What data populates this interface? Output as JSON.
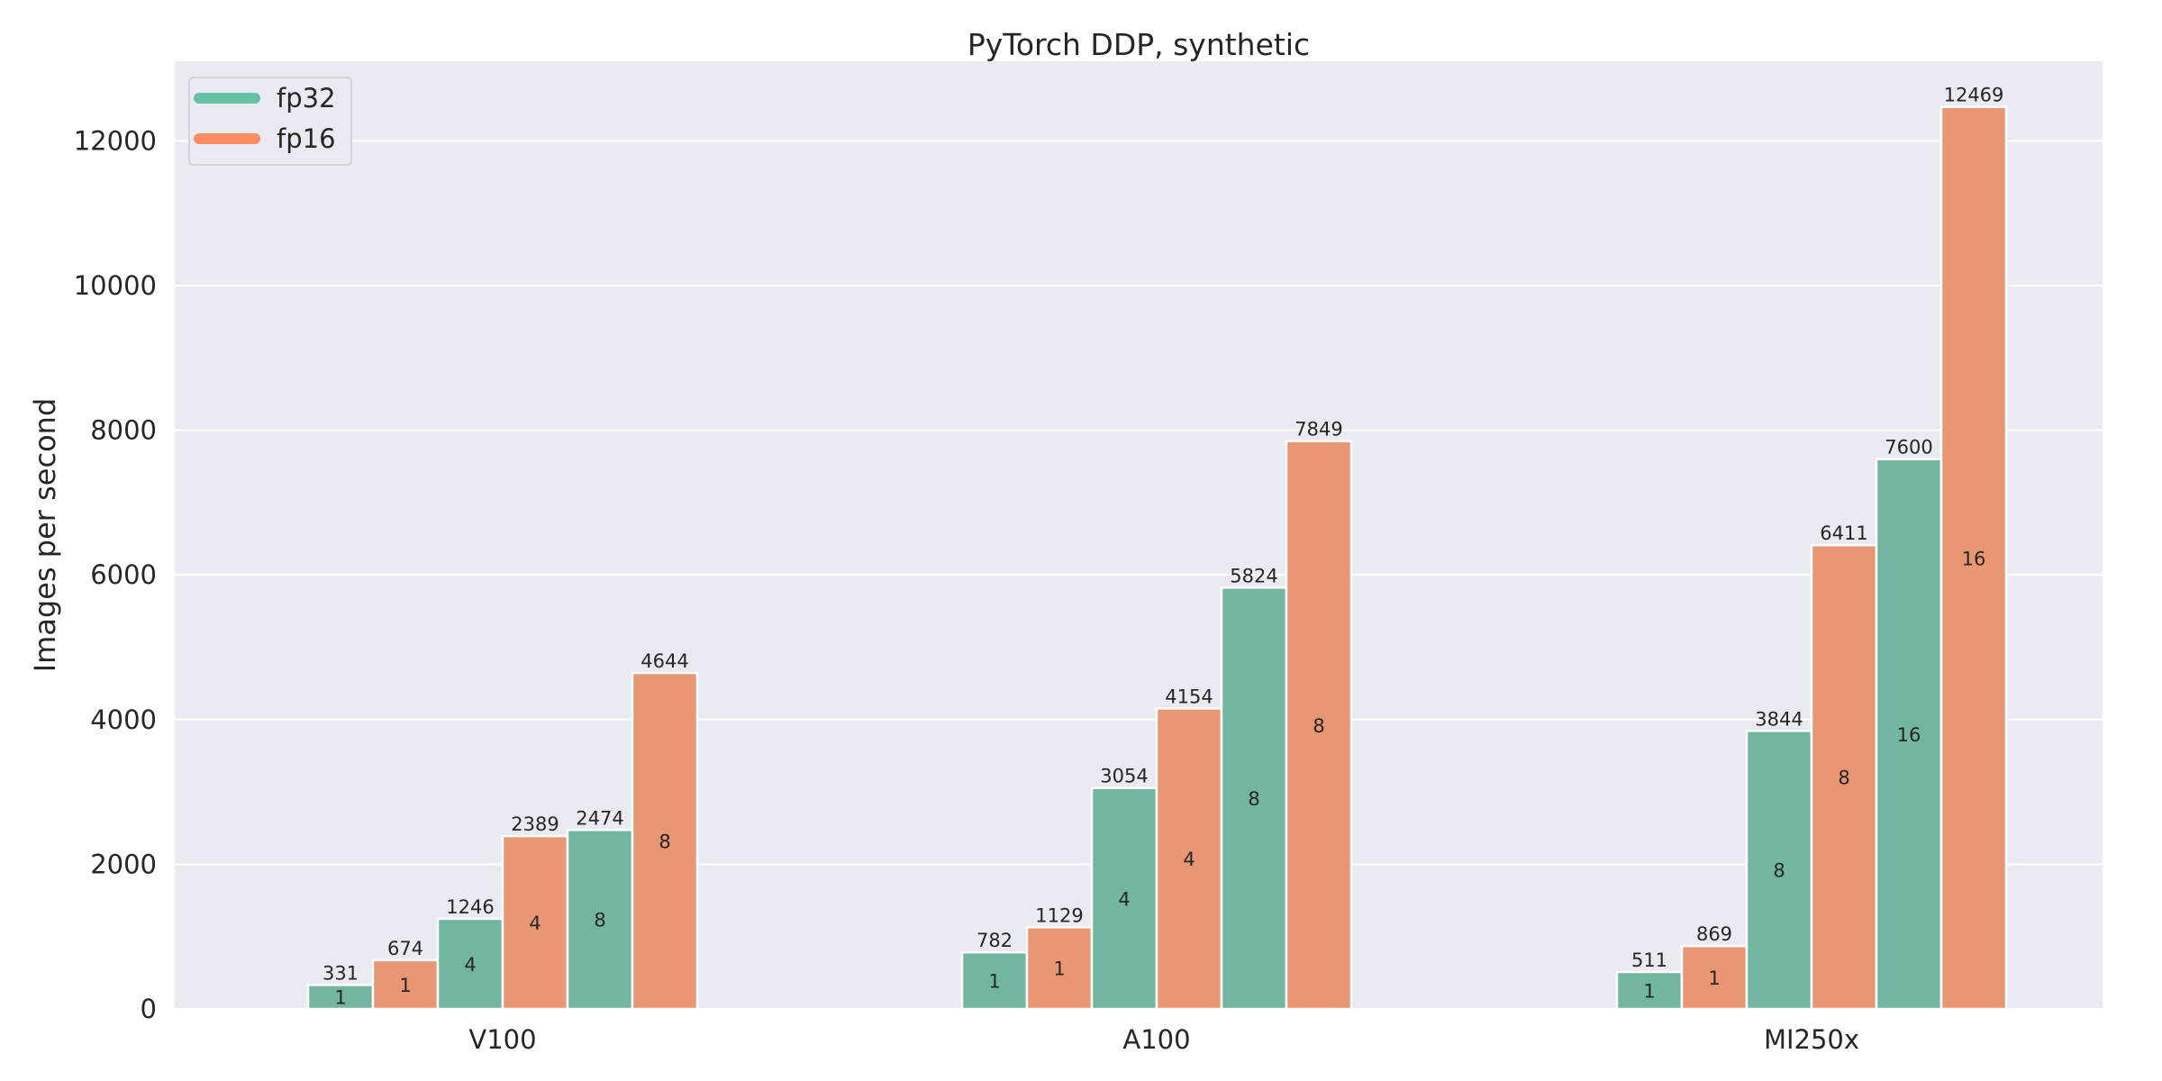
{
  "chart_data": {
    "type": "bar",
    "title": "PyTorch DDP, synthetic",
    "xlabel": "",
    "ylabel": "Images per second",
    "ylim": [
      0,
      13100
    ],
    "yticks": [
      0,
      2000,
      4000,
      6000,
      8000,
      10000,
      12000
    ],
    "grid": true,
    "legend_position": "top-left",
    "categories": [
      "V100",
      "A100",
      "MI250x"
    ],
    "legend": [
      {
        "name": "fp32",
        "color": "#66c2a5"
      },
      {
        "name": "fp16",
        "color": "#fc8d62"
      }
    ],
    "bar_colors": {
      "fp32": "#72b6a1",
      "fp16": "#e99675"
    },
    "groups": [
      {
        "category": "V100",
        "bars": [
          {
            "series": "fp32",
            "gpus": "1",
            "value": 331
          },
          {
            "series": "fp16",
            "gpus": "1",
            "value": 674
          },
          {
            "series": "fp32",
            "gpus": "4",
            "value": 1246
          },
          {
            "series": "fp16",
            "gpus": "4",
            "value": 2389
          },
          {
            "series": "fp32",
            "gpus": "8",
            "value": 2474
          },
          {
            "series": "fp16",
            "gpus": "8",
            "value": 4644
          }
        ]
      },
      {
        "category": "A100",
        "bars": [
          {
            "series": "fp32",
            "gpus": "1",
            "value": 782
          },
          {
            "series": "fp16",
            "gpus": "1",
            "value": 1129
          },
          {
            "series": "fp32",
            "gpus": "4",
            "value": 3054
          },
          {
            "series": "fp16",
            "gpus": "4",
            "value": 4154
          },
          {
            "series": "fp32",
            "gpus": "8",
            "value": 5824
          },
          {
            "series": "fp16",
            "gpus": "8",
            "value": 7849
          }
        ]
      },
      {
        "category": "MI250x",
        "bars": [
          {
            "series": "fp32",
            "gpus": "1",
            "value": 511
          },
          {
            "series": "fp16",
            "gpus": "1",
            "value": 869
          },
          {
            "series": "fp32",
            "gpus": "8",
            "value": 3844
          },
          {
            "series": "fp16",
            "gpus": "8",
            "value": 6411
          },
          {
            "series": "fp32",
            "gpus": "16",
            "value": 7600
          },
          {
            "series": "fp16",
            "gpus": "16",
            "value": 12469
          }
        ]
      }
    ]
  }
}
